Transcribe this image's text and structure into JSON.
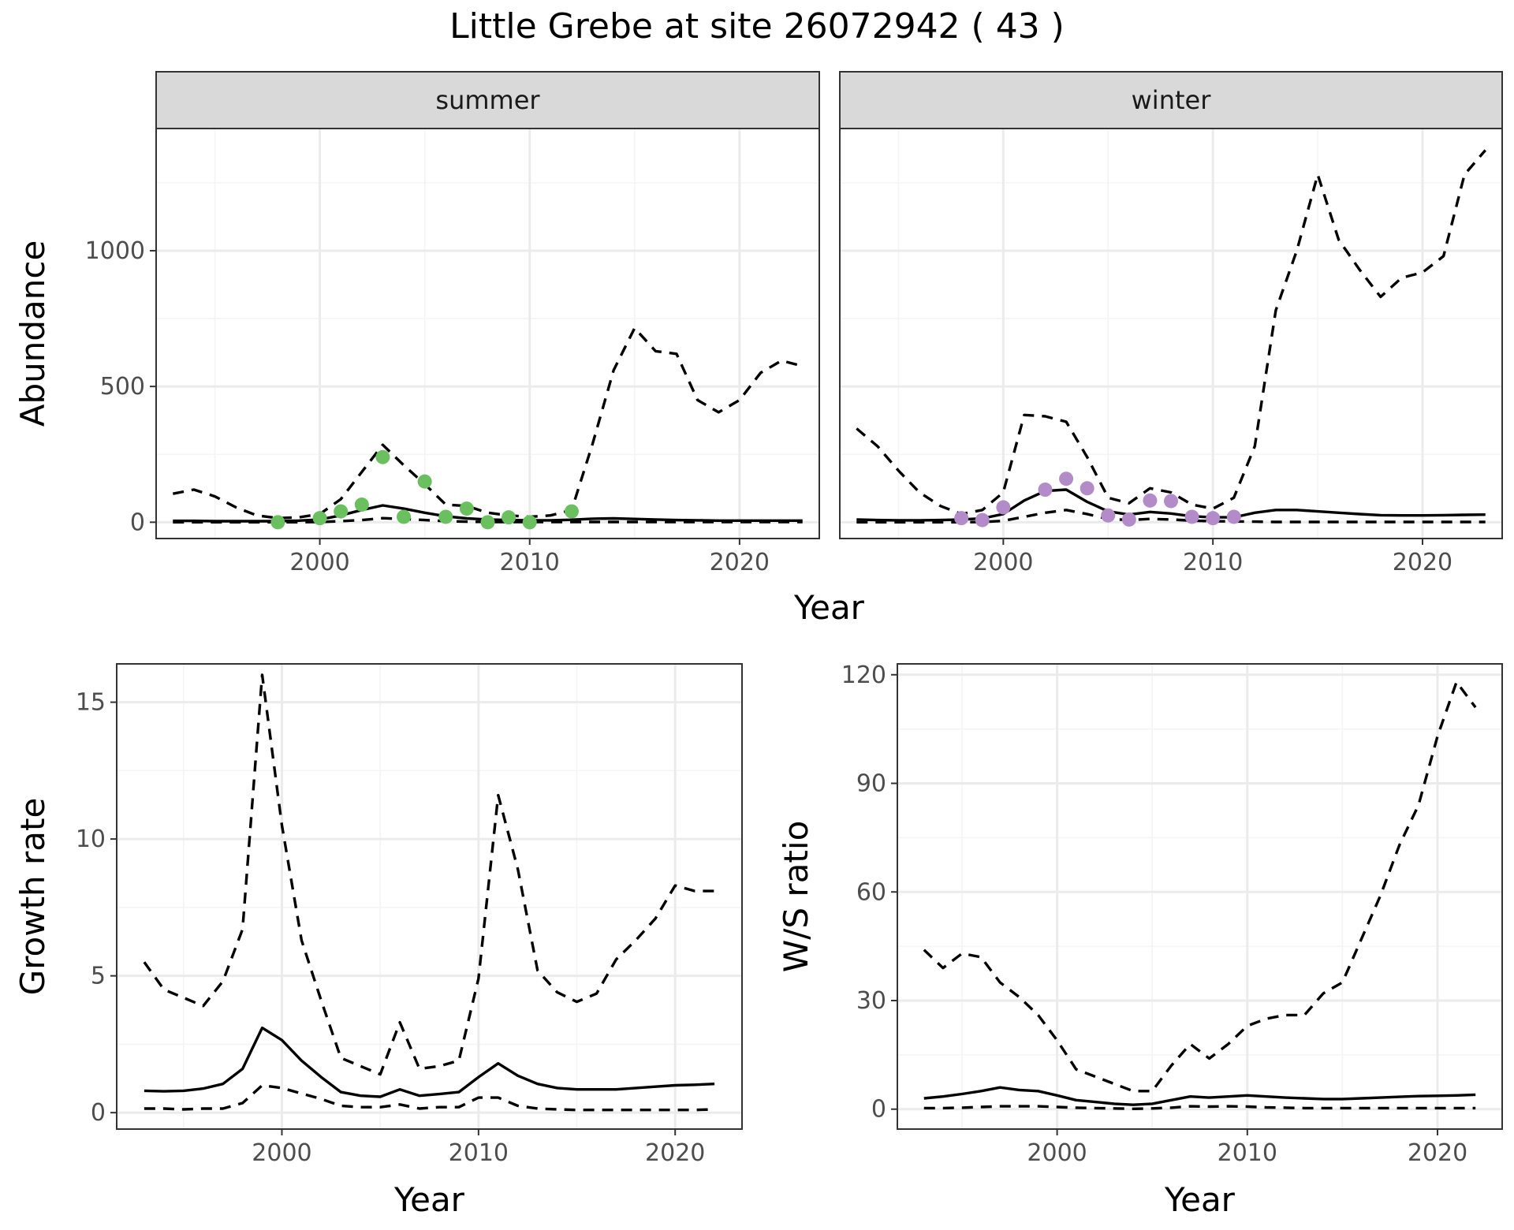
{
  "title": "Little Grebe at site 26072942 ( 43 )",
  "colors": {
    "summer_points": "#6abf5f",
    "winter_points": "#b38bc9",
    "lines": "#000000",
    "grid_major": "#ebebeb",
    "grid_minor": "#f4f4f4",
    "strip_fill": "#d9d9d9",
    "panel_border": "#333333"
  },
  "chart_data": [
    {
      "id": "abundance",
      "type": "line",
      "facet_labels": [
        "summer",
        "winter"
      ],
      "xlabel": "Year",
      "ylabel": "Abundance",
      "xlim": [
        1992.2,
        2023.8
      ],
      "ylim": [
        -60,
        1450
      ],
      "x_ticks": [
        2000,
        2010,
        2020
      ],
      "y_ticks": [
        0,
        500,
        1000
      ],
      "x_tick_labels": [
        "2000",
        "2010",
        "2020"
      ],
      "y_tick_labels": [
        "0",
        "500",
        "1000"
      ],
      "grid": true,
      "legend": "none",
      "panels": [
        {
          "facet": "summer",
          "estimate": {
            "x": [
              1993,
              1994,
              1995,
              1996,
              1997,
              1998,
              1999,
              2000,
              2001,
              2002,
              2003,
              2004,
              2005,
              2006,
              2007,
              2008,
              2009,
              2010,
              2011,
              2012,
              2013,
              2014,
              2015,
              2016,
              2017,
              2018,
              2019,
              2020,
              2021,
              2022,
              2023
            ],
            "y": [
              5,
              5,
              4,
              4,
              4,
              4,
              6,
              10,
              25,
              45,
              62,
              50,
              35,
              22,
              14,
              10,
              8,
              7,
              7,
              9,
              13,
              14,
              12,
              10,
              8,
              7,
              6,
              6,
              6,
              6,
              6
            ]
          },
          "upper": {
            "x": [
              1993,
              1994,
              1995,
              1996,
              1997,
              1998,
              1999,
              2000,
              2001,
              2002,
              2003,
              2004,
              2005,
              2006,
              2007,
              2008,
              2009,
              2010,
              2011,
              2012,
              2013,
              2014,
              2015,
              2016,
              2017,
              2018,
              2019,
              2020,
              2021,
              2022,
              2023
            ],
            "y": [
              105,
              120,
              95,
              55,
              25,
              15,
              18,
              30,
              85,
              185,
              285,
              210,
              140,
              65,
              60,
              35,
              25,
              20,
              25,
              45,
              290,
              560,
              715,
              630,
              620,
              450,
              405,
              450,
              550,
              595,
              575
            ]
          },
          "lower": {
            "x": [
              1993,
              1994,
              1995,
              1996,
              1997,
              1998,
              1999,
              2000,
              2001,
              2002,
              2003,
              2004,
              2005,
              2006,
              2007,
              2008,
              2009,
              2010,
              2011,
              2012,
              2013,
              2014,
              2015,
              2016,
              2017,
              2018,
              2019,
              2020,
              2021,
              2022,
              2023
            ],
            "y": [
              0,
              0,
              0,
              0,
              0,
              0,
              0,
              1,
              4,
              8,
              15,
              12,
              8,
              4,
              2,
              1,
              1,
              1,
              1,
              1,
              1,
              1,
              1,
              1,
              1,
              1,
              1,
              1,
              1,
              1,
              1
            ]
          },
          "observed": {
            "x": [
              1998,
              2000,
              2001,
              2002,
              2003,
              2004,
              2005,
              2006,
              2007,
              2008,
              2009,
              2010,
              2012
            ],
            "y": [
              0,
              15,
              40,
              65,
              240,
              20,
              150,
              20,
              50,
              0,
              18,
              0,
              40
            ]
          }
        },
        {
          "facet": "winter",
          "estimate": {
            "x": [
              1993,
              1994,
              1995,
              1996,
              1997,
              1998,
              1999,
              2000,
              2001,
              2002,
              2003,
              2004,
              2005,
              2006,
              2007,
              2008,
              2009,
              2010,
              2011,
              2012,
              2013,
              2014,
              2015,
              2016,
              2017,
              2018,
              2019,
              2020,
              2021,
              2022,
              2023
            ],
            "y": [
              10,
              8,
              7,
              7,
              8,
              10,
              14,
              30,
              80,
              115,
              120,
              75,
              40,
              28,
              38,
              32,
              22,
              18,
              18,
              35,
              45,
              45,
              40,
              35,
              30,
              26,
              25,
              25,
              26,
              27,
              28
            ]
          },
          "upper": {
            "x": [
              1993,
              1994,
              1995,
              1996,
              1997,
              1998,
              1999,
              2000,
              2001,
              2002,
              2003,
              2004,
              2005,
              2006,
              2007,
              2008,
              2009,
              2010,
              2011,
              2012,
              2013,
              2014,
              2015,
              2016,
              2017,
              2018,
              2019,
              2020,
              2021,
              2022,
              2023
            ],
            "y": [
              345,
              280,
              190,
              110,
              60,
              30,
              45,
              110,
              395,
              390,
              370,
              240,
              90,
              70,
              125,
              110,
              65,
              50,
              90,
              280,
              780,
              1000,
              1280,
              1040,
              930,
              830,
              900,
              920,
              980,
              1280,
              1370
            ]
          },
          "lower": {
            "x": [
              1993,
              1994,
              1995,
              1996,
              1997,
              1998,
              1999,
              2000,
              2001,
              2002,
              2003,
              2004,
              2005,
              2006,
              2007,
              2008,
              2009,
              2010,
              2011,
              2012,
              2013,
              2014,
              2015,
              2016,
              2017,
              2018,
              2019,
              2020,
              2021,
              2022,
              2023
            ],
            "y": [
              0,
              0,
              0,
              0,
              0,
              0,
              1,
              5,
              20,
              35,
              45,
              30,
              12,
              8,
              12,
              10,
              6,
              4,
              3,
              2,
              1,
              1,
              1,
              1,
              1,
              1,
              1,
              1,
              1,
              1,
              1
            ]
          },
          "observed": {
            "x": [
              1998,
              1999,
              2000,
              2002,
              2003,
              2004,
              2005,
              2006,
              2007,
              2008,
              2009,
              2010,
              2011
            ],
            "y": [
              15,
              8,
              55,
              120,
              160,
              125,
              25,
              10,
              80,
              78,
              20,
              15,
              20
            ]
          }
        }
      ]
    },
    {
      "id": "growth",
      "type": "line",
      "xlabel": "Year",
      "ylabel": "Growth rate",
      "xlim": [
        1991.6,
        2023.4
      ],
      "ylim": [
        -0.6,
        16.4
      ],
      "x_ticks": [
        2000,
        2010,
        2020
      ],
      "y_ticks": [
        0,
        5,
        10,
        15
      ],
      "x_tick_labels": [
        "2000",
        "2010",
        "2020"
      ],
      "y_tick_labels": [
        "0",
        "5",
        "10",
        "15"
      ],
      "grid": true,
      "legend": "none",
      "estimate": {
        "x": [
          1993,
          1994,
          1995,
          1996,
          1997,
          1998,
          1999,
          2000,
          2001,
          2002,
          2003,
          2004,
          2005,
          2006,
          2007,
          2008,
          2009,
          2010,
          2011,
          2012,
          2013,
          2014,
          2015,
          2016,
          2017,
          2018,
          2019,
          2020,
          2021,
          2022
        ],
        "y": [
          0.8,
          0.78,
          0.8,
          0.88,
          1.05,
          1.6,
          3.1,
          2.65,
          1.9,
          1.3,
          0.75,
          0.62,
          0.58,
          0.85,
          0.62,
          0.68,
          0.75,
          1.3,
          1.8,
          1.35,
          1.05,
          0.9,
          0.85,
          0.85,
          0.85,
          0.9,
          0.95,
          1.0,
          1.02,
          1.05
        ]
      },
      "upper": {
        "x": [
          1993,
          1994,
          1995,
          1996,
          1997,
          1998,
          1999,
          2000,
          2001,
          2002,
          2003,
          2004,
          2005,
          2006,
          2007,
          2008,
          2009,
          2010,
          2011,
          2012,
          2013,
          2014,
          2015,
          2016,
          2017,
          2018,
          2019,
          2020,
          2021,
          2022
        ],
        "y": [
          5.5,
          4.5,
          4.2,
          3.9,
          4.8,
          6.7,
          16.0,
          10.5,
          6.3,
          4.1,
          2.0,
          1.7,
          1.4,
          3.3,
          1.6,
          1.7,
          1.9,
          4.9,
          11.6,
          8.9,
          5.2,
          4.4,
          4.05,
          4.35,
          5.6,
          6.3,
          7.1,
          8.3,
          8.1,
          8.1
        ]
      },
      "lower": {
        "x": [
          1993,
          1994,
          1995,
          1996,
          1997,
          1998,
          1999,
          2000,
          2001,
          2002,
          2003,
          2004,
          2005,
          2006,
          2007,
          2008,
          2009,
          2010,
          2011,
          2012,
          2013,
          2014,
          2015,
          2016,
          2017,
          2018,
          2019,
          2020,
          2021,
          2022
        ],
        "y": [
          0.15,
          0.15,
          0.12,
          0.15,
          0.15,
          0.35,
          1.0,
          0.9,
          0.7,
          0.5,
          0.25,
          0.2,
          0.2,
          0.3,
          0.15,
          0.2,
          0.2,
          0.55,
          0.55,
          0.25,
          0.15,
          0.12,
          0.1,
          0.1,
          0.1,
          0.1,
          0.1,
          0.1,
          0.1,
          0.12
        ]
      }
    },
    {
      "id": "ratio",
      "type": "line",
      "xlabel": "Year",
      "ylabel": "W/S ratio",
      "xlim": [
        1991.6,
        2023.4
      ],
      "ylim": [
        -5.5,
        123
      ],
      "x_ticks": [
        2000,
        2010,
        2020
      ],
      "y_ticks": [
        0,
        30,
        60,
        90,
        120
      ],
      "x_tick_labels": [
        "2000",
        "2010",
        "2020"
      ],
      "y_tick_labels": [
        "0",
        "30",
        "60",
        "90",
        "120"
      ],
      "grid": true,
      "legend": "none",
      "estimate": {
        "x": [
          1993,
          1994,
          1995,
          1996,
          1997,
          1998,
          1999,
          2000,
          2001,
          2002,
          2003,
          2004,
          2005,
          2006,
          2007,
          2008,
          2009,
          2010,
          2011,
          2012,
          2013,
          2014,
          2015,
          2016,
          2017,
          2018,
          2019,
          2020,
          2021,
          2022
        ],
        "y": [
          3.0,
          3.5,
          4.2,
          5.0,
          6.0,
          5.3,
          5.0,
          3.8,
          2.5,
          2.0,
          1.5,
          1.2,
          1.5,
          2.5,
          3.5,
          3.2,
          3.5,
          3.8,
          3.5,
          3.2,
          3.0,
          2.8,
          2.8,
          3.0,
          3.2,
          3.4,
          3.6,
          3.7,
          3.8,
          4.0
        ]
      },
      "upper": {
        "x": [
          1993,
          1994,
          1995,
          1996,
          1997,
          1998,
          1999,
          2000,
          2001,
          2002,
          2003,
          2004,
          2005,
          2006,
          2007,
          2008,
          2009,
          2010,
          2011,
          2012,
          2013,
          2014,
          2015,
          2016,
          2017,
          2018,
          2019,
          2020,
          2021,
          2022
        ],
        "y": [
          44,
          39,
          43,
          42,
          35,
          31,
          26,
          19,
          11,
          9,
          7,
          5,
          5,
          12,
          18,
          14,
          18,
          23,
          25,
          26,
          26,
          32,
          35,
          47,
          59,
          73,
          84,
          103,
          118,
          111
        ]
      },
      "lower": {
        "x": [
          1993,
          1994,
          1995,
          1996,
          1997,
          1998,
          1999,
          2000,
          2001,
          2002,
          2003,
          2004,
          2005,
          2006,
          2007,
          2008,
          2009,
          2010,
          2011,
          2012,
          2013,
          2014,
          2015,
          2016,
          2017,
          2018,
          2019,
          2020,
          2021,
          2022
        ],
        "y": [
          0.3,
          0.3,
          0.4,
          0.6,
          0.8,
          0.8,
          0.8,
          0.6,
          0.4,
          0.3,
          0.2,
          0.1,
          0.2,
          0.4,
          0.8,
          0.7,
          0.8,
          0.7,
          0.5,
          0.4,
          0.3,
          0.3,
          0.3,
          0.3,
          0.3,
          0.3,
          0.3,
          0.3,
          0.3,
          0.3
        ]
      }
    }
  ]
}
